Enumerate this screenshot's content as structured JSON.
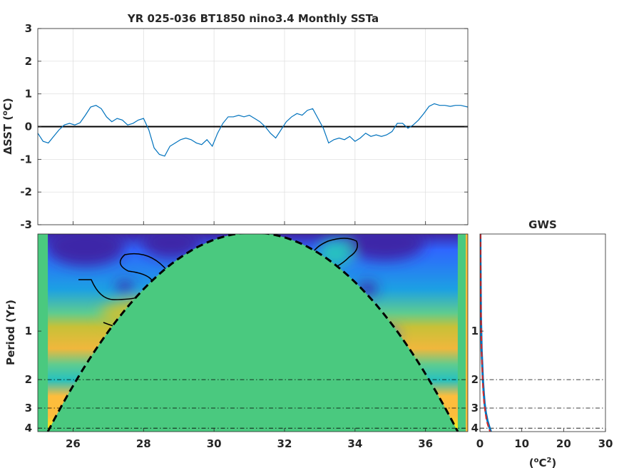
{
  "chart_data": [
    {
      "type": "line",
      "title": "YR 025-036 BT1850 nino3.4 Monthly SSTa",
      "ylabel_prefix": "ΔSST (",
      "ylabel_unit": "o",
      "ylabel_suffix": "C)",
      "xlim": [
        25,
        37.2
      ],
      "ylim": [
        -3,
        3
      ],
      "yticks": [
        "-3",
        "-2",
        "-1",
        "0",
        "1",
        "2",
        "3"
      ],
      "xticks": [
        26,
        28,
        30,
        32,
        34,
        36
      ],
      "grid": true,
      "line_color": "#0072bd",
      "zero_line_color": "#000000",
      "series": [
        {
          "x": [
            25.0,
            25.15,
            25.3,
            25.45,
            25.6,
            25.75,
            25.9,
            26.05,
            26.2,
            26.35,
            26.5,
            26.65,
            26.8,
            26.95,
            27.1,
            27.25,
            27.4,
            27.55,
            27.7,
            27.85,
            28.0,
            28.15,
            28.3,
            28.45,
            28.6,
            28.75,
            28.9,
            29.05,
            29.2,
            29.35,
            29.5,
            29.65,
            29.8,
            29.95,
            30.1,
            30.25,
            30.4,
            30.55,
            30.7,
            30.85,
            31.0,
            31.15,
            31.3,
            31.45,
            31.6,
            31.75,
            31.9,
            32.05,
            32.2,
            32.35,
            32.5,
            32.65,
            32.8,
            32.95,
            33.1,
            33.25,
            33.4,
            33.55,
            33.7,
            33.85,
            34.0,
            34.15,
            34.3,
            34.45,
            34.6,
            34.75,
            34.9,
            35.05,
            35.2,
            35.35,
            35.5,
            35.65,
            35.8,
            35.95,
            36.1,
            36.25,
            36.4,
            36.55,
            36.7,
            36.85,
            37.0,
            37.2
          ],
          "y": [
            -0.2,
            -0.45,
            -0.5,
            -0.3,
            -0.1,
            0.05,
            0.1,
            0.05,
            0.12,
            0.35,
            0.6,
            0.65,
            0.55,
            0.3,
            0.15,
            0.25,
            0.2,
            0.05,
            0.1,
            0.2,
            0.25,
            -0.1,
            -0.65,
            -0.85,
            -0.9,
            -0.6,
            -0.5,
            -0.4,
            -0.35,
            -0.4,
            -0.5,
            -0.55,
            -0.4,
            -0.6,
            -0.2,
            0.1,
            0.3,
            0.3,
            0.35,
            0.3,
            0.35,
            0.25,
            0.15,
            0.0,
            -0.2,
            -0.35,
            -0.1,
            0.15,
            0.3,
            0.4,
            0.35,
            0.5,
            0.55,
            0.25,
            -0.05,
            -0.5,
            -0.4,
            -0.35,
            -0.4,
            -0.3,
            -0.45,
            -0.35,
            -0.2,
            -0.3,
            -0.25,
            -0.3,
            -0.25,
            -0.15,
            0.1,
            0.1,
            -0.05,
            0.05,
            0.2,
            0.4,
            0.62,
            0.7,
            0.65,
            0.65,
            0.62,
            0.65,
            0.65,
            0.6
          ]
        }
      ]
    },
    {
      "type": "heatmap",
      "ylabel": "Period (Yr)",
      "xlim": [
        25,
        37.2
      ],
      "ylog": true,
      "ylim": [
        0.25,
        4.2
      ],
      "yticks": [
        1,
        2,
        3,
        4
      ],
      "yticklabels": [
        "1",
        "2",
        "3",
        "4"
      ],
      "xticks": [
        26,
        28,
        30,
        32,
        34,
        36
      ],
      "xticklabels": [
        "26",
        "28",
        "30",
        "32",
        "34",
        "36"
      ],
      "reference_periods": [
        2,
        3,
        4
      ],
      "cone_of_influence_center": 31.1,
      "cone_of_influence_base": 25.4,
      "colormap": [
        "#3e26a8",
        "#2f66fe",
        "#1ca0e3",
        "#26c1c0",
        "#5fcc8f",
        "#c8c137",
        "#fdbd3c",
        "#f8f80f"
      ],
      "masked_color": "#4ac97f"
    },
    {
      "type": "line",
      "title": "GWS",
      "xlabel_prefix": "(",
      "xlabel_unit": "o",
      "xlabel_mid": "C",
      "xlabel_power": "2",
      "xlabel_suffix": ")",
      "xlim": [
        0,
        30
      ],
      "xticks": [
        "0",
        "10",
        "20",
        "30"
      ],
      "yticklabels": [
        "1",
        "2",
        "3",
        "4"
      ],
      "ylog": true,
      "series": [
        {
          "name": "GWS",
          "color": "#0072bd",
          "x": [
            0.1,
            0.12,
            0.15,
            0.18,
            0.22,
            0.3,
            0.4,
            0.55,
            0.7,
            0.9,
            1.1,
            1.4,
            1.8,
            2.2,
            2.6
          ],
          "y": [
            0.25,
            0.35,
            0.45,
            0.6,
            0.8,
            1.0,
            1.3,
            1.6,
            2.0,
            2.4,
            2.8,
            3.2,
            3.6,
            3.9,
            4.2
          ]
        },
        {
          "name": "significance",
          "color": "#d62728",
          "dashed": true,
          "x": [
            0.15,
            0.16,
            0.18,
            0.2,
            0.25,
            0.3,
            0.4,
            0.5,
            0.65,
            0.8,
            1.0,
            1.3,
            1.6,
            2.0,
            2.4
          ],
          "y": [
            0.25,
            0.35,
            0.45,
            0.6,
            0.8,
            1.0,
            1.3,
            1.6,
            2.0,
            2.4,
            2.8,
            3.2,
            3.6,
            3.9,
            4.2
          ]
        }
      ]
    }
  ]
}
